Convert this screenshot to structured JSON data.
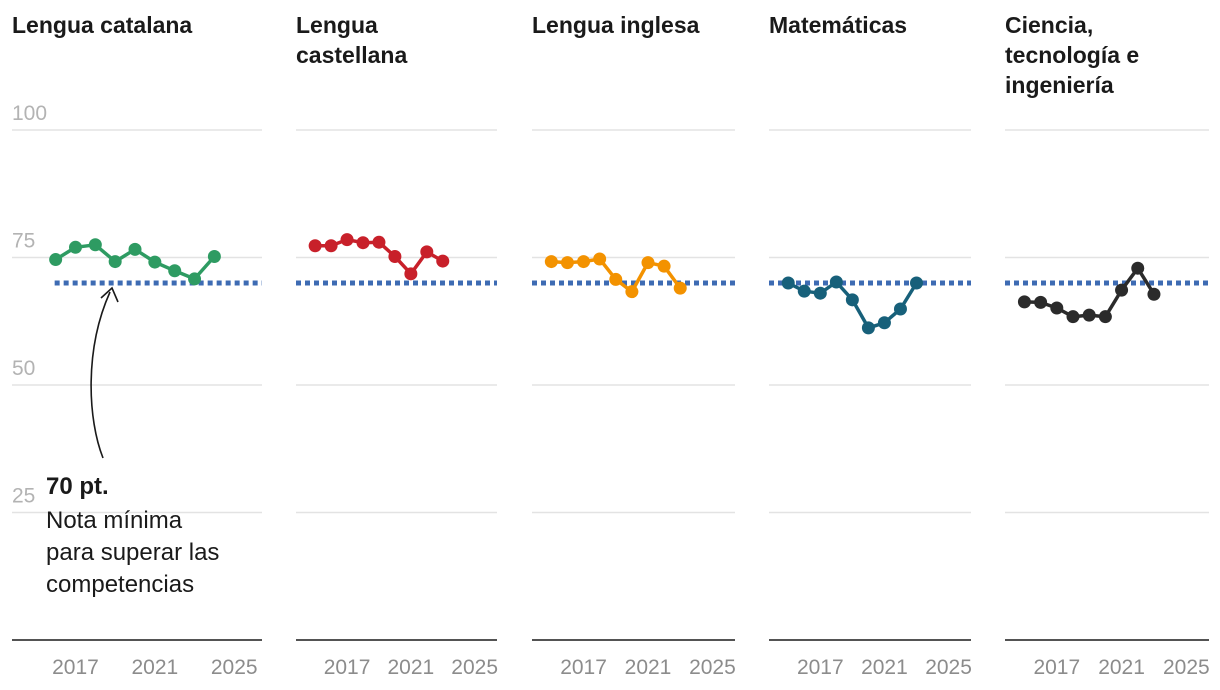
{
  "chart_data": {
    "type": "line",
    "y_ticks": [
      25,
      50,
      75,
      100
    ],
    "ylim": [
      0,
      100
    ],
    "x": [
      2015,
      2016,
      2017,
      2018,
      2019,
      2020,
      2021,
      2022,
      2023,
      2024,
      2025,
      2026
    ],
    "x_ticks": [
      2017,
      2021,
      2025
    ],
    "threshold": {
      "value": 70,
      "color": "#3d6bb3"
    },
    "annotation": {
      "bold": "70 pt.",
      "lines": [
        "Nota mínima",
        "para superar las",
        "competencias"
      ]
    },
    "panels": [
      {
        "title_lines": [
          "Lengua catalana"
        ],
        "color": "#2e9b62",
        "x": [
          2016,
          2017,
          2018,
          2019,
          2020,
          2021,
          2022,
          2023,
          2024
        ],
        "values": [
          74.6,
          77.0,
          77.5,
          74.2,
          76.6,
          74.1,
          72.4,
          70.8,
          75.2
        ]
      },
      {
        "title_lines": [
          "Lengua",
          "castellana"
        ],
        "color": "#c8202a",
        "x": [
          2015,
          2016,
          2017,
          2018,
          2019,
          2020,
          2021,
          2022,
          2023
        ],
        "values": [
          77.3,
          77.3,
          78.5,
          77.9,
          78.0,
          75.2,
          71.8,
          76.1,
          74.3
        ]
      },
      {
        "title_lines": [
          "Lengua inglesa"
        ],
        "color": "#f39200",
        "x": [
          2015,
          2016,
          2017,
          2018,
          2019,
          2020,
          2021,
          2022,
          2023
        ],
        "values": [
          74.2,
          74.0,
          74.2,
          74.7,
          70.7,
          68.3,
          74.0,
          73.3,
          69.0
        ]
      },
      {
        "title_lines": [
          "Matemáticas"
        ],
        "color": "#17607a",
        "x": [
          2015,
          2016,
          2017,
          2018,
          2019,
          2020,
          2021,
          2022,
          2023
        ],
        "values": [
          70.0,
          68.4,
          68.0,
          70.2,
          66.7,
          61.2,
          62.2,
          64.9,
          70.0
        ]
      },
      {
        "title_lines": [
          "Ciencia,",
          "tecnología e",
          "ingeniería"
        ],
        "color": "#2b2b2b",
        "x": [
          2015,
          2016,
          2017,
          2018,
          2019,
          2020,
          2021,
          2022,
          2023
        ],
        "values": [
          66.3,
          66.2,
          65.1,
          63.4,
          63.7,
          63.4,
          68.6,
          72.9,
          67.8
        ]
      }
    ]
  }
}
